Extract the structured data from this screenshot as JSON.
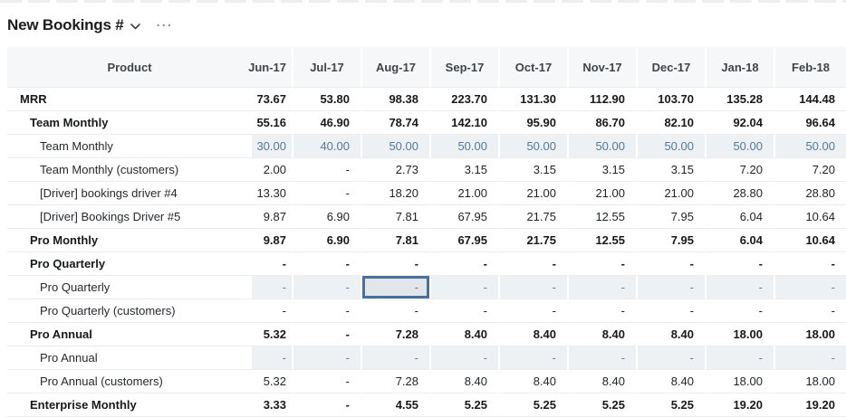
{
  "header": {
    "title": "New Bookings #",
    "chevron_icon": "chevron-down",
    "more_menu_label": "..."
  },
  "colors": {
    "header_bg": "#f6f7f8",
    "row_border": "#ededed",
    "input_row_bg": "#edf1f4",
    "input_value_blue": "#50799c",
    "input_dash_gray": "#6e7e8a",
    "selected_cell_border": "#46719c",
    "selected_cell_bg": "#e2e6ea",
    "text_dark": "#17191b"
  },
  "table": {
    "columns": [
      "Product",
      "Jun-17",
      "Jul-17",
      "Aug-17",
      "Sep-17",
      "Oct-17",
      "Nov-17",
      "Dec-17",
      "Jan-18",
      "Feb-18"
    ],
    "first_month_column_clipped": true,
    "selected_cell": {
      "row_index": 8,
      "col_index": 2,
      "column": "Aug-17",
      "value": "-"
    },
    "rows": [
      {
        "label": "MRR",
        "indent": 0,
        "bold": true,
        "input": false,
        "value_color": "dark",
        "values": [
          "73.67",
          "53.80",
          "98.38",
          "223.70",
          "131.30",
          "112.90",
          "103.70",
          "135.28",
          "144.48"
        ]
      },
      {
        "label": "Team Monthly",
        "indent": 1,
        "bold": true,
        "input": false,
        "value_color": "dark",
        "values": [
          "55.16",
          "46.90",
          "78.74",
          "142.10",
          "95.90",
          "86.70",
          "82.10",
          "92.04",
          "96.64"
        ]
      },
      {
        "label": "Team Monthly",
        "indent": 2,
        "bold": false,
        "input": true,
        "value_color": "blue",
        "values": [
          "30.00",
          "40.00",
          "50.00",
          "50.00",
          "50.00",
          "50.00",
          "50.00",
          "50.00",
          "50.00"
        ]
      },
      {
        "label": "Team Monthly (customers)",
        "indent": 2,
        "bold": false,
        "input": false,
        "value_color": "dark",
        "values": [
          "2.00",
          "-",
          "2.73",
          "3.15",
          "3.15",
          "3.15",
          "3.15",
          "7.20",
          "7.20"
        ]
      },
      {
        "label": "[Driver] bookings driver #4",
        "indent": 2,
        "bold": false,
        "input": false,
        "value_color": "dark",
        "values": [
          "13.30",
          "-",
          "18.20",
          "21.00",
          "21.00",
          "21.00",
          "21.00",
          "28.80",
          "28.80"
        ]
      },
      {
        "label": "[Driver] Bookings Driver #5",
        "indent": 2,
        "bold": false,
        "input": false,
        "value_color": "dark",
        "values": [
          "9.87",
          "6.90",
          "7.81",
          "67.95",
          "21.75",
          "12.55",
          "7.95",
          "6.04",
          "10.64"
        ]
      },
      {
        "label": "Pro Monthly",
        "indent": 1,
        "bold": true,
        "input": false,
        "value_color": "dark",
        "values": [
          "9.87",
          "6.90",
          "7.81",
          "67.95",
          "21.75",
          "12.55",
          "7.95",
          "6.04",
          "10.64"
        ]
      },
      {
        "label": "Pro Quarterly",
        "indent": 1,
        "bold": true,
        "input": false,
        "value_color": "dark",
        "values": [
          "-",
          "-",
          "-",
          "-",
          "-",
          "-",
          "-",
          "-",
          "-"
        ]
      },
      {
        "label": "Pro Quarterly",
        "indent": 2,
        "bold": false,
        "input": true,
        "value_color": "gray",
        "values": [
          "-",
          "-",
          "-",
          "-",
          "-",
          "-",
          "-",
          "-",
          "-"
        ]
      },
      {
        "label": "Pro Quarterly (customers)",
        "indent": 2,
        "bold": false,
        "input": false,
        "value_color": "dark",
        "values": [
          "-",
          "-",
          "-",
          "-",
          "-",
          "-",
          "-",
          "-",
          "-"
        ]
      },
      {
        "label": "Pro Annual",
        "indent": 1,
        "bold": true,
        "input": false,
        "value_color": "dark",
        "values": [
          "5.32",
          "-",
          "7.28",
          "8.40",
          "8.40",
          "8.40",
          "8.40",
          "18.00",
          "18.00"
        ]
      },
      {
        "label": "Pro Annual",
        "indent": 2,
        "bold": false,
        "input": true,
        "value_color": "gray",
        "values": [
          "-",
          "-",
          "-",
          "-",
          "-",
          "-",
          "-",
          "-",
          "-"
        ]
      },
      {
        "label": "Pro Annual (customers)",
        "indent": 2,
        "bold": false,
        "input": false,
        "value_color": "dark",
        "values": [
          "5.32",
          "-",
          "7.28",
          "8.40",
          "8.40",
          "8.40",
          "8.40",
          "18.00",
          "18.00"
        ]
      },
      {
        "label": "Enterprise Monthly",
        "indent": 1,
        "bold": true,
        "input": false,
        "value_color": "dark",
        "values": [
          "3.33",
          "-",
          "4.55",
          "5.25",
          "5.25",
          "5.25",
          "5.25",
          "19.20",
          "19.20"
        ]
      }
    ]
  }
}
